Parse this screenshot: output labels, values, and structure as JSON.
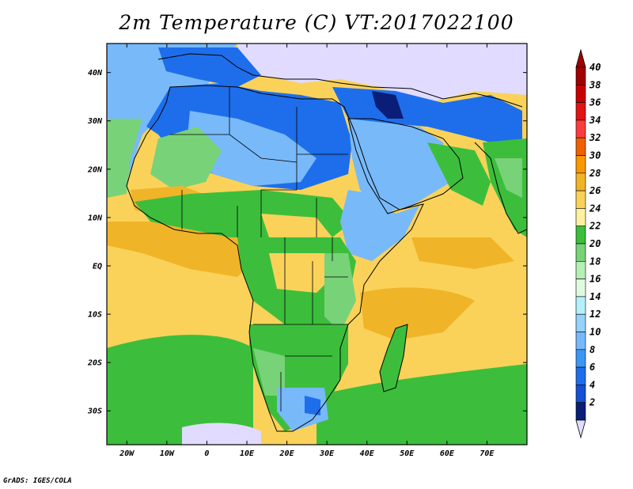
{
  "title": "2m Temperature (C) VT:2017022100",
  "credit": "GrADS: IGES/COLA",
  "map": {
    "lon_range": [
      -25,
      80
    ],
    "lat_range": [
      -37,
      46
    ],
    "lon_ticks": [
      {
        "value": -20,
        "label": "20W"
      },
      {
        "value": -10,
        "label": "10W"
      },
      {
        "value": 0,
        "label": "0"
      },
      {
        "value": 10,
        "label": "10E"
      },
      {
        "value": 20,
        "label": "20E"
      },
      {
        "value": 30,
        "label": "30E"
      },
      {
        "value": 40,
        "label": "40E"
      },
      {
        "value": 50,
        "label": "50E"
      },
      {
        "value": 60,
        "label": "60E"
      },
      {
        "value": 70,
        "label": "70E"
      }
    ],
    "lat_ticks": [
      {
        "value": 40,
        "label": "40N"
      },
      {
        "value": 30,
        "label": "30N"
      },
      {
        "value": 20,
        "label": "20N"
      },
      {
        "value": 10,
        "label": "10N"
      },
      {
        "value": 0,
        "label": "EQ"
      },
      {
        "value": -10,
        "label": "10S"
      },
      {
        "value": -20,
        "label": "20S"
      },
      {
        "value": -30,
        "label": "30S"
      }
    ]
  },
  "colorbar": {
    "levels": [
      {
        "label": "40",
        "color": "#a00000"
      },
      {
        "label": "38",
        "color": "#c80000"
      },
      {
        "label": "36",
        "color": "#e11414"
      },
      {
        "label": "34",
        "color": "#fa3c3c"
      },
      {
        "label": "32",
        "color": "#f06000"
      },
      {
        "label": "30",
        "color": "#fa9600"
      },
      {
        "label": "28",
        "color": "#f0b428"
      },
      {
        "label": "26",
        "color": "#fad25a"
      },
      {
        "label": "24",
        "color": "#fdf0a0"
      },
      {
        "label": "22",
        "color": "#3cbe3c"
      },
      {
        "label": "20",
        "color": "#78d278"
      },
      {
        "label": "18",
        "color": "#b4f0b4"
      },
      {
        "label": "16",
        "color": "#e0fae0"
      },
      {
        "label": "14",
        "color": "#b4f0fa"
      },
      {
        "label": "12",
        "color": "#96d2fa"
      },
      {
        "label": "10",
        "color": "#78b9fa"
      },
      {
        "label": "8",
        "color": "#3c96f5"
      },
      {
        "label": "6",
        "color": "#1e6eeb"
      },
      {
        "label": "4",
        "color": "#1450d2"
      },
      {
        "label": "2",
        "color": "#0a1e78"
      }
    ],
    "top_color": "#a00000",
    "bottom_color": "#e1dcff"
  },
  "colors": {
    "ocean_warm": "#fad25a",
    "ocean_mid": "#f0b428",
    "ocean_cool": "#3cbe3c",
    "land_cold": "#1e6eeb",
    "land_cool": "#78b9fa",
    "land_mild": "#78d278",
    "land_warm": "#3cbe3c",
    "land_hot": "#fad25a",
    "land_freezing": "#e1dcff",
    "land_deep_cold": "#0a1e78"
  }
}
